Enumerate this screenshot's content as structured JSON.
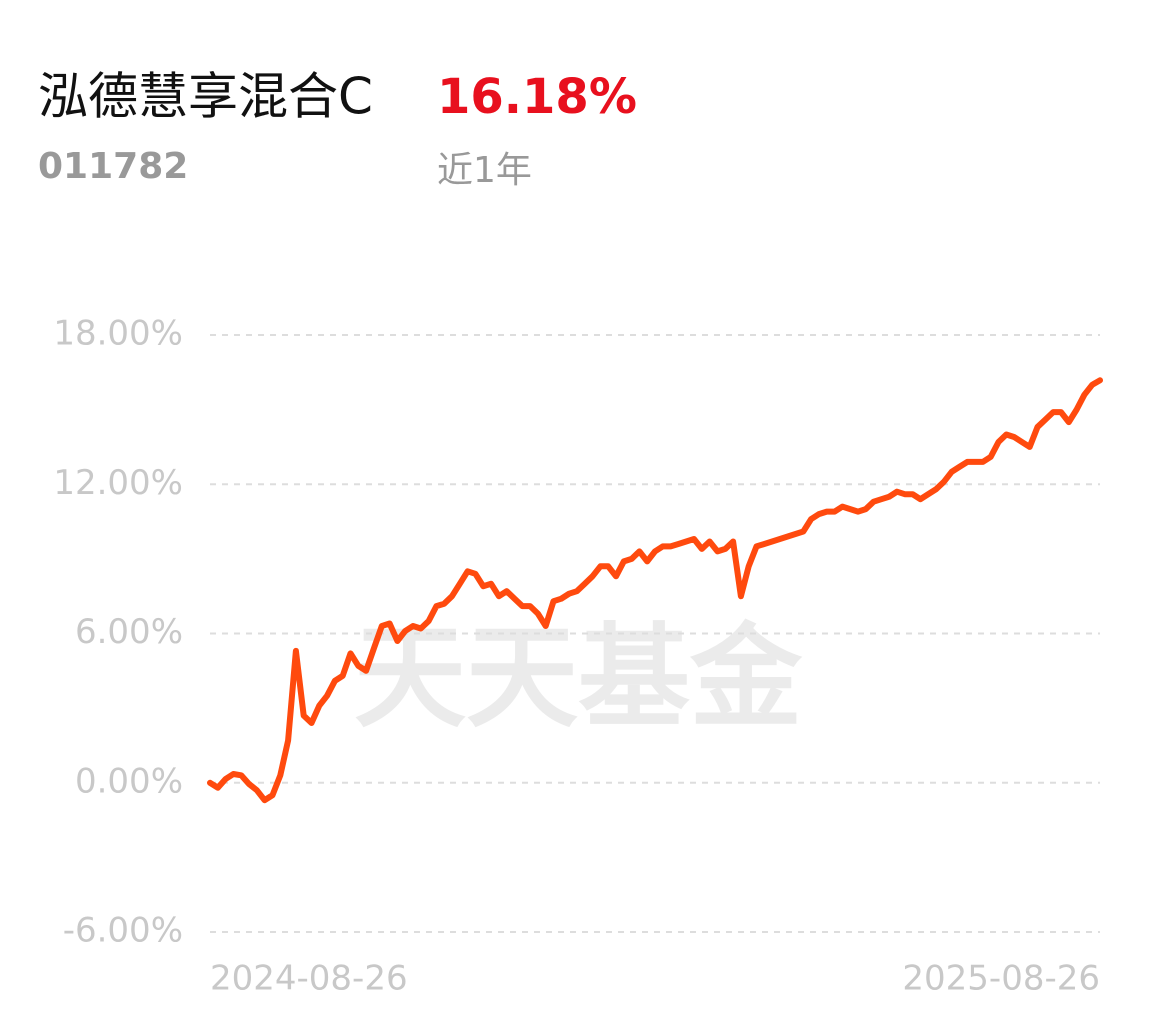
{
  "chart_data": {
    "type": "line",
    "title": "泓德慧享混合C",
    "code": "011782",
    "return_label": "16.18%",
    "period": "近1年",
    "watermark": "天天基金",
    "categories": [
      "2024-08-26",
      null,
      null,
      null,
      null,
      null,
      null,
      null,
      null,
      null,
      null,
      null,
      null,
      null,
      null,
      null,
      null,
      null,
      null,
      null,
      null,
      null,
      null,
      null,
      null,
      null,
      null,
      null,
      null,
      null,
      null,
      null,
      null,
      null,
      null,
      null,
      null,
      null,
      null,
      null,
      null,
      null,
      null,
      null,
      null,
      null,
      null,
      null,
      null,
      null,
      null,
      null,
      null,
      null,
      null,
      null,
      null,
      null,
      null,
      null,
      null,
      null,
      null,
      null,
      null,
      null,
      null,
      null,
      null,
      null,
      null,
      null,
      null,
      null,
      null,
      null,
      null,
      null,
      null,
      null,
      null,
      null,
      null,
      null,
      null,
      null,
      null,
      null,
      null,
      null,
      null,
      null,
      null,
      null,
      null,
      null,
      null,
      null,
      null,
      null,
      null,
      null,
      null,
      null,
      null,
      null,
      null,
      null,
      null,
      null,
      null,
      null,
      null,
      null,
      "2025-08-26"
    ],
    "series": [
      {
        "color": "#ff4a0e",
        "values": [
          0,
          -0.2,
          0.15,
          0.35,
          0.3,
          -0.05,
          -0.3,
          -0.7,
          -0.5,
          0.3,
          1.7,
          5.3,
          2.7,
          2.4,
          3.1,
          3.5,
          4.1,
          4.3,
          5.2,
          4.7,
          4.5,
          5.4,
          6.3,
          6.4,
          5.7,
          6.1,
          6.3,
          6.2,
          6.5,
          7.1,
          7.2,
          7.5,
          8.0,
          8.5,
          8.4,
          7.9,
          8.0,
          7.5,
          7.7,
          7.4,
          7.1,
          7.1,
          6.8,
          6.3,
          7.3,
          7.4,
          7.6,
          7.7,
          8.0,
          8.3,
          8.7,
          8.7,
          8.3,
          8.9,
          9.0,
          9.3,
          8.9,
          9.3,
          9.5,
          9.5,
          9.6,
          9.7,
          9.8,
          9.4,
          9.7,
          9.3,
          9.4,
          9.7,
          7.5,
          8.7,
          9.5,
          9.6,
          9.7,
          9.8,
          9.9,
          10.0,
          10.1,
          10.6,
          10.8,
          10.9,
          10.9,
          11.1,
          11.0,
          10.9,
          11.0,
          11.3,
          11.4,
          11.5,
          11.7,
          11.6,
          11.6,
          11.4,
          11.6,
          11.8,
          12.1,
          12.5,
          12.7,
          12.9,
          12.9,
          12.9,
          13.1,
          13.7,
          14.0,
          13.9,
          13.7,
          13.5,
          14.3,
          14.6,
          14.9,
          14.9,
          14.5,
          15.0,
          15.6,
          16.0,
          16.18
        ]
      }
    ],
    "ylim": [
      -6,
      18
    ],
    "yticks": [
      {
        "value": 18,
        "label": "18.00%"
      },
      {
        "value": 12,
        "label": "12.00%"
      },
      {
        "value": 6,
        "label": "6.00%"
      },
      {
        "value": 0,
        "label": "0.00%"
      },
      {
        "value": -6,
        "label": "-6.00%"
      }
    ],
    "grid": true
  }
}
